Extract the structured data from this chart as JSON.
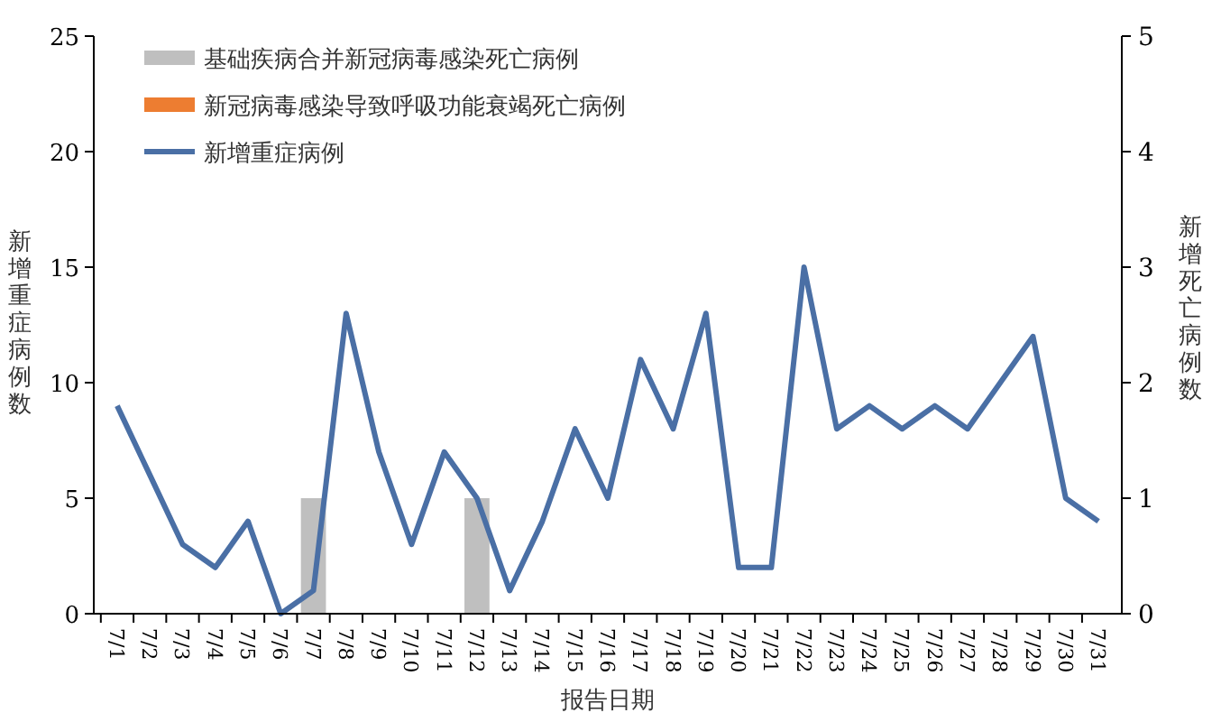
{
  "chart_data": {
    "type": "bar",
    "xlabel": "报告日期",
    "ylabel": "新增重症病例数",
    "y2label": "新增死亡病例数",
    "categories": [
      "7/1",
      "7/2",
      "7/3",
      "7/4",
      "7/5",
      "7/6",
      "7/7",
      "7/8",
      "7/9",
      "7/10",
      "7/11",
      "7/12",
      "7/13",
      "7/14",
      "7/15",
      "7/16",
      "7/17",
      "7/18",
      "7/19",
      "7/20",
      "7/21",
      "7/22",
      "7/23",
      "7/24",
      "7/25",
      "7/26",
      "7/27",
      "7/28",
      "7/29",
      "7/30",
      "7/31"
    ],
    "series": [
      {
        "name": "基础疾病合并新冠病毒感染死亡病例",
        "color": "#bfbfbf",
        "axis": "y2",
        "values": [
          0,
          0,
          0,
          0,
          0,
          0,
          1,
          0,
          0,
          0,
          0,
          1,
          0,
          0,
          0,
          0,
          0,
          0,
          0,
          0,
          0,
          0,
          0,
          0,
          0,
          0,
          0,
          0,
          0,
          0,
          0
        ]
      },
      {
        "name": "新冠病毒感染导致呼吸功能衰竭死亡病例",
        "color": "#ed7d31",
        "axis": "y2",
        "values": [
          0,
          0,
          0,
          0,
          0,
          0,
          0,
          0,
          0,
          0,
          0,
          0,
          0,
          0,
          0,
          0,
          0,
          0,
          0,
          0,
          0,
          0,
          0,
          0,
          0,
          0,
          0,
          0,
          0,
          0,
          0
        ]
      },
      {
        "name": "新增重症病例",
        "type": "line",
        "color": "#4a6fa5",
        "values": [
          9,
          6,
          3,
          2,
          4,
          0,
          1,
          13,
          7,
          3,
          7,
          5,
          1,
          4,
          8,
          5,
          11,
          8,
          13,
          2,
          2,
          15,
          8,
          9,
          8,
          9,
          8,
          10,
          12,
          5,
          4
        ]
      }
    ],
    "ylim": [
      0,
      25
    ],
    "yticks": [
      0,
      5,
      10,
      15,
      20,
      25
    ],
    "y2lim": [
      0,
      5
    ],
    "y2ticks": [
      0,
      1,
      2,
      3,
      4,
      5
    ],
    "legend": "top left",
    "grid": false,
    "marker": "none",
    "line_style": "solid"
  }
}
